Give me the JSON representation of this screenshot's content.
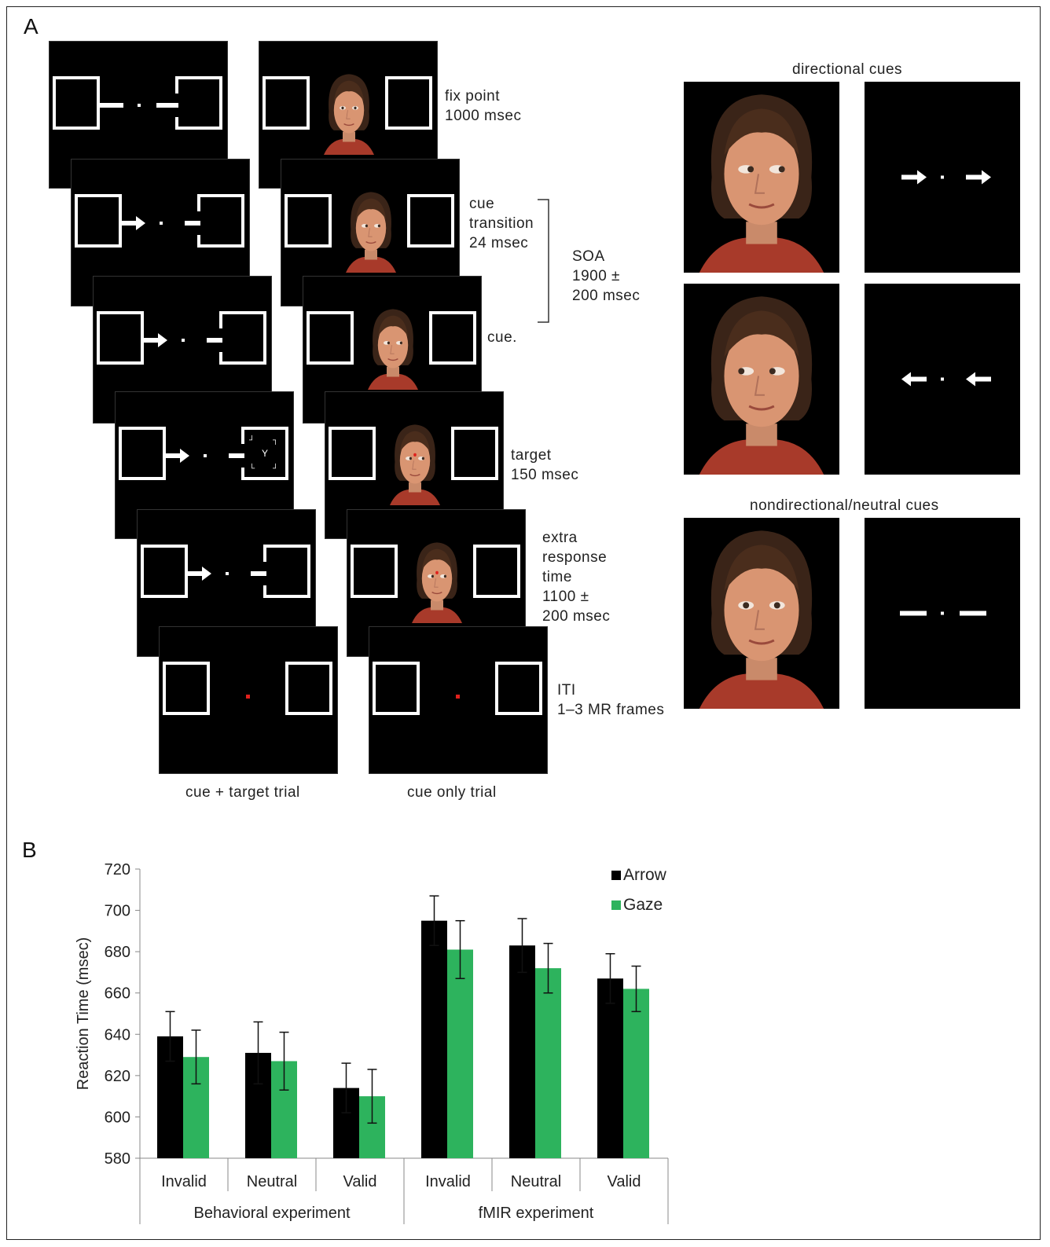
{
  "panelA": {
    "letter": "A",
    "steps": [
      {
        "label": "fix point\n1000 msec"
      },
      {
        "label": "cue\ntransition\n24 msec"
      },
      {
        "label": "cue."
      },
      {
        "label": "target\n150 msec"
      },
      {
        "label": "extra\nresponse\ntime\n1100 ±\n200 msec"
      },
      {
        "label": "ITI\n1–3 MR frames"
      }
    ],
    "soa_label": "SOA\n1900 ±\n200 msec",
    "trial_labels": [
      "cue + target trial",
      "cue only trial"
    ],
    "directional_title": "directional cues",
    "neutral_title": "nondirectional/neutral cues"
  },
  "panelB": {
    "letter": "B"
  },
  "chart_data": {
    "type": "bar",
    "ylabel": "Reaction Time  (msec)",
    "ylim": [
      580,
      720
    ],
    "yticks": [
      580,
      600,
      620,
      640,
      660,
      680,
      700,
      720
    ],
    "categories": [
      "Invalid",
      "Neutral",
      "Valid",
      "Invalid",
      "Neutral",
      "Valid"
    ],
    "groups": [
      "Behavioral experiment",
      "fMIR experiment"
    ],
    "series": [
      {
        "name": "Arrow",
        "color": "#000000",
        "values": [
          639,
          631,
          614,
          695,
          683,
          667
        ],
        "errors": [
          12,
          15,
          12,
          12,
          13,
          12
        ]
      },
      {
        "name": "Gaze",
        "color": "#2db35d",
        "values": [
          629,
          627,
          610,
          681,
          672,
          662
        ],
        "errors": [
          13,
          14,
          13,
          14,
          12,
          11
        ]
      }
    ]
  }
}
